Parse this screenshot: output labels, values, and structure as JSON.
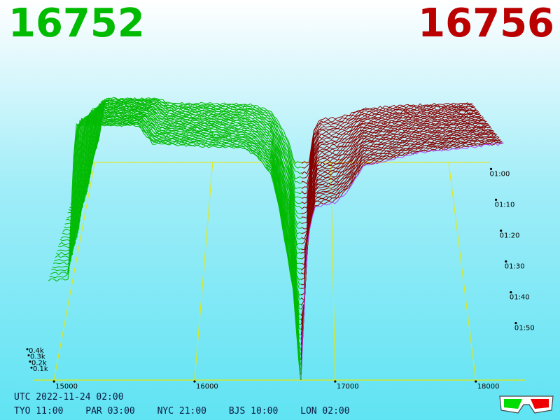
{
  "header": {
    "bid_price": "16752",
    "ask_price": "16756",
    "bid_color": "#00bb00",
    "ask_color": "#bb0000"
  },
  "clock": {
    "utc": "UTC 2022-11-24 02:00",
    "zones": [
      "TYO 11:00",
      "PAR 03:00",
      "NYC 21:00",
      "BJS 10:00",
      "LON 02:00"
    ]
  },
  "icons": {
    "glasses": "3d-glasses-icon"
  },
  "chart_data": {
    "type": "area",
    "xlim": [
      14850,
      18350
    ],
    "x_ticks": [
      15000,
      16000,
      17000,
      18000
    ],
    "x_tick_labels": [
      "15000",
      "16000",
      "17000",
      "18000"
    ],
    "y_ticks": [
      100,
      200,
      300,
      400
    ],
    "y_tick_labels": [
      "0.1k",
      "0.2k",
      "0.3k",
      "0.4k"
    ],
    "time_ticks": [
      0,
      10,
      20,
      30,
      40,
      50
    ],
    "time_tick_labels": [
      "01:00",
      "01:10",
      "01:20",
      "01:30",
      "01:40",
      "01:50"
    ],
    "time_range_minutes": [
      0,
      60
    ],
    "mid_price": 16754,
    "bid_color": "#00bb00",
    "ask_color": "#880000",
    "latest_ask_color": "#b040ff",
    "bid_depth": {
      "x": [
        14960,
        15100,
        15150,
        15600,
        15700,
        16350,
        16450,
        16550,
        16600,
        16700,
        16752
      ],
      "y": [
        220,
        220,
        560,
        560,
        520,
        510,
        490,
        450,
        380,
        200,
        0
      ]
    },
    "ask_depth": {
      "x": [
        16756,
        16800,
        16850,
        17000,
        17100,
        17200,
        17600,
        18200
      ],
      "y": [
        0,
        300,
        380,
        390,
        420,
        470,
        500,
        520
      ]
    }
  }
}
